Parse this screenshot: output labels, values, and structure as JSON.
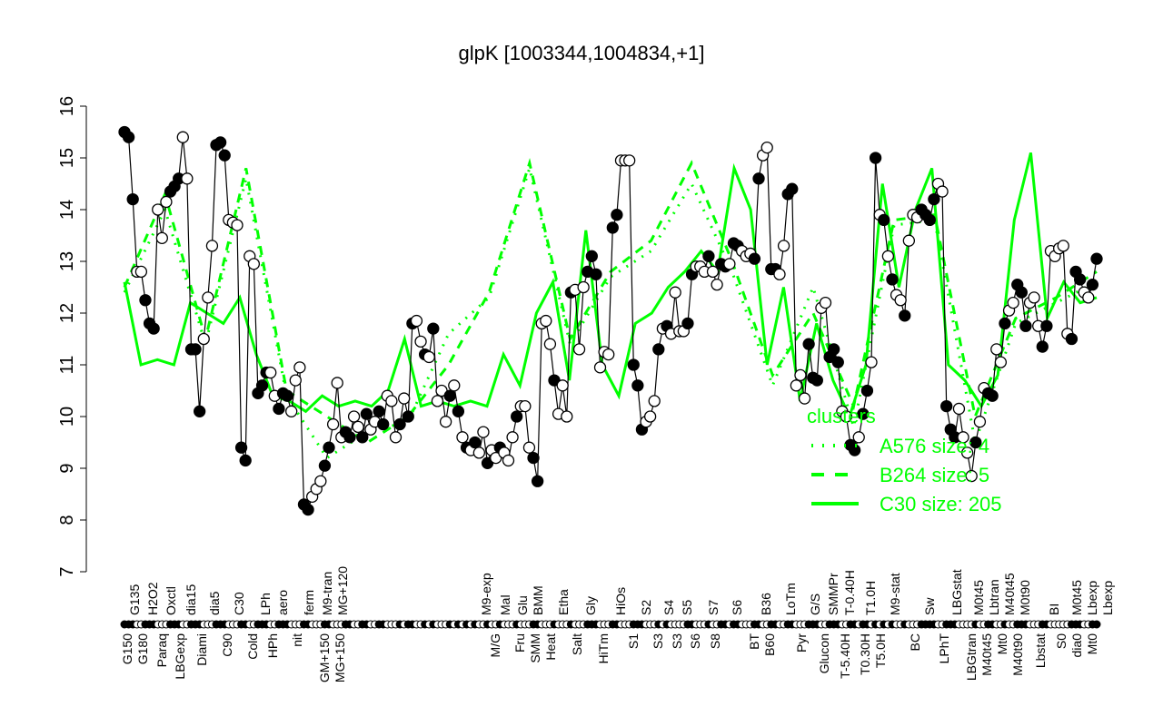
{
  "chart_data": {
    "type": "line",
    "title": "glpK [1003344,1004834,+1]",
    "xlabel": "",
    "ylabel": "",
    "ylim": [
      7,
      16
    ],
    "yticks": [
      "7",
      "8",
      "9",
      "10",
      "11",
      "12",
      "13",
      "14",
      "15",
      "16"
    ],
    "grid": false,
    "legend_placement": "bottom-right",
    "colors": {
      "points_line": "#000000",
      "clusters": "#00ff00"
    },
    "points": [
      [
        15.5,
        1
      ],
      [
        15.4,
        1
      ],
      [
        14.2,
        1
      ],
      [
        12.8,
        0
      ],
      [
        12.8,
        0
      ],
      [
        12.25,
        1
      ],
      [
        11.8,
        1
      ],
      [
        11.7,
        1
      ],
      [
        14.0,
        0
      ],
      [
        13.45,
        0
      ],
      [
        14.15,
        0
      ],
      [
        14.35,
        1
      ],
      [
        14.45,
        1
      ],
      [
        14.6,
        1
      ],
      [
        15.4,
        0
      ],
      [
        14.6,
        0
      ],
      [
        11.3,
        1
      ],
      [
        11.3,
        1
      ],
      [
        10.1,
        1
      ],
      [
        11.5,
        0
      ],
      [
        12.3,
        0
      ],
      [
        13.3,
        0
      ],
      [
        15.25,
        1
      ],
      [
        15.3,
        1
      ],
      [
        15.05,
        1
      ],
      [
        13.8,
        0
      ],
      [
        13.75,
        0
      ],
      [
        13.7,
        0
      ],
      [
        9.4,
        1
      ],
      [
        9.15,
        1
      ],
      [
        13.1,
        0
      ],
      [
        12.95,
        0
      ],
      [
        10.45,
        1
      ],
      [
        10.6,
        1
      ],
      [
        10.85,
        1
      ],
      [
        10.85,
        0
      ],
      [
        10.4,
        0
      ],
      [
        10.15,
        1
      ],
      [
        10.45,
        1
      ],
      [
        10.4,
        1
      ],
      [
        10.1,
        0
      ],
      [
        10.7,
        0
      ],
      [
        10.95,
        0
      ],
      [
        8.3,
        1
      ],
      [
        8.2,
        1
      ],
      [
        8.45,
        0
      ],
      [
        8.6,
        0
      ],
      [
        8.75,
        0
      ],
      [
        9.05,
        1
      ],
      [
        9.4,
        1
      ],
      [
        9.85,
        0
      ],
      [
        10.65,
        0
      ],
      [
        9.6,
        0
      ],
      [
        9.7,
        1
      ],
      [
        9.6,
        1
      ],
      [
        10.0,
        0
      ],
      [
        9.8,
        0
      ],
      [
        9.6,
        1
      ],
      [
        10.05,
        1
      ],
      [
        9.75,
        0
      ],
      [
        9.9,
        0
      ],
      [
        10.1,
        1
      ],
      [
        9.85,
        1
      ],
      [
        10.4,
        0
      ],
      [
        10.3,
        0
      ],
      [
        9.6,
        0
      ],
      [
        9.85,
        1
      ],
      [
        10.35,
        0
      ],
      [
        10.0,
        1
      ],
      [
        11.8,
        1
      ],
      [
        11.85,
        0
      ],
      [
        11.45,
        0
      ],
      [
        11.2,
        1
      ],
      [
        11.15,
        0
      ],
      [
        11.7,
        1
      ],
      [
        10.3,
        0
      ],
      [
        10.5,
        0
      ],
      [
        9.9,
        0
      ],
      [
        10.4,
        1
      ],
      [
        10.6,
        0
      ],
      [
        10.1,
        1
      ],
      [
        9.6,
        0
      ],
      [
        9.4,
        1
      ],
      [
        9.35,
        0
      ],
      [
        9.5,
        1
      ],
      [
        9.3,
        0
      ],
      [
        9.7,
        0
      ],
      [
        9.1,
        1
      ],
      [
        9.35,
        0
      ],
      [
        9.2,
        0
      ],
      [
        9.4,
        1
      ],
      [
        9.3,
        0
      ],
      [
        9.15,
        0
      ],
      [
        9.6,
        0
      ],
      [
        10.0,
        1
      ],
      [
        10.2,
        0
      ],
      [
        10.2,
        0
      ],
      [
        9.4,
        0
      ],
      [
        9.2,
        1
      ],
      [
        8.75,
        1
      ],
      [
        11.8,
        0
      ],
      [
        11.85,
        0
      ],
      [
        11.4,
        0
      ],
      [
        10.7,
        1
      ],
      [
        10.05,
        0
      ],
      [
        10.6,
        0
      ],
      [
        10.0,
        0
      ],
      [
        12.4,
        1
      ],
      [
        12.45,
        0
      ],
      [
        11.3,
        0
      ],
      [
        12.5,
        0
      ],
      [
        12.8,
        1
      ],
      [
        13.1,
        1
      ],
      [
        12.75,
        1
      ],
      [
        10.95,
        0
      ],
      [
        11.25,
        0
      ],
      [
        11.2,
        0
      ],
      [
        13.65,
        1
      ],
      [
        13.9,
        1
      ],
      [
        14.95,
        0
      ],
      [
        14.95,
        0
      ],
      [
        14.95,
        0
      ],
      [
        11.0,
        1
      ],
      [
        10.6,
        1
      ],
      [
        9.75,
        1
      ],
      [
        9.9,
        0
      ],
      [
        10.0,
        0
      ],
      [
        10.3,
        0
      ],
      [
        11.3,
        1
      ],
      [
        11.7,
        0
      ],
      [
        11.75,
        1
      ],
      [
        11.6,
        0
      ],
      [
        12.4,
        0
      ],
      [
        11.65,
        0
      ],
      [
        11.65,
        0
      ],
      [
        11.8,
        1
      ],
      [
        12.75,
        1
      ],
      [
        12.9,
        0
      ],
      [
        12.9,
        0
      ],
      [
        12.8,
        0
      ],
      [
        13.1,
        1
      ],
      [
        12.8,
        0
      ],
      [
        12.55,
        0
      ],
      [
        12.95,
        1
      ],
      [
        12.9,
        1
      ],
      [
        12.95,
        0
      ],
      [
        13.35,
        1
      ],
      [
        13.3,
        1
      ],
      [
        13.2,
        0
      ],
      [
        13.1,
        0
      ],
      [
        13.15,
        0
      ],
      [
        13.05,
        1
      ],
      [
        14.6,
        1
      ],
      [
        15.05,
        0
      ],
      [
        15.2,
        0
      ],
      [
        12.85,
        1
      ],
      [
        12.85,
        1
      ],
      [
        12.75,
        0
      ],
      [
        13.3,
        0
      ],
      [
        14.3,
        1
      ],
      [
        14.4,
        1
      ],
      [
        10.6,
        0
      ],
      [
        10.8,
        0
      ],
      [
        10.35,
        0
      ],
      [
        11.4,
        1
      ],
      [
        10.75,
        1
      ],
      [
        10.7,
        1
      ],
      [
        12.1,
        0
      ],
      [
        12.2,
        0
      ],
      [
        11.15,
        1
      ],
      [
        11.3,
        1
      ],
      [
        11.05,
        1
      ],
      [
        10.1,
        0
      ],
      [
        10.0,
        0
      ],
      [
        9.45,
        1
      ],
      [
        9.35,
        1
      ],
      [
        9.6,
        0
      ],
      [
        10.05,
        1
      ],
      [
        10.5,
        1
      ],
      [
        11.05,
        0
      ],
      [
        15.0,
        1
      ],
      [
        13.9,
        0
      ],
      [
        13.8,
        1
      ],
      [
        13.1,
        0
      ],
      [
        12.65,
        1
      ],
      [
        12.35,
        0
      ],
      [
        12.25,
        0
      ],
      [
        11.95,
        1
      ],
      [
        13.4,
        0
      ],
      [
        13.9,
        0
      ],
      [
        13.85,
        0
      ],
      [
        14.0,
        1
      ],
      [
        13.9,
        1
      ],
      [
        13.8,
        1
      ],
      [
        14.2,
        1
      ],
      [
        14.5,
        0
      ],
      [
        14.35,
        0
      ],
      [
        10.2,
        1
      ],
      [
        9.75,
        1
      ],
      [
        9.6,
        1
      ],
      [
        10.15,
        0
      ],
      [
        9.6,
        0
      ],
      [
        9.3,
        0
      ],
      [
        8.85,
        0
      ],
      [
        9.5,
        1
      ],
      [
        9.9,
        0
      ],
      [
        10.55,
        0
      ],
      [
        10.45,
        1
      ],
      [
        10.4,
        1
      ],
      [
        11.3,
        0
      ],
      [
        11.05,
        0
      ],
      [
        11.8,
        1
      ],
      [
        12.05,
        0
      ],
      [
        12.2,
        0
      ],
      [
        12.55,
        1
      ],
      [
        12.4,
        1
      ],
      [
        11.75,
        1
      ],
      [
        12.2,
        0
      ],
      [
        12.3,
        0
      ],
      [
        11.75,
        0
      ],
      [
        11.35,
        1
      ],
      [
        11.75,
        1
      ],
      [
        13.2,
        0
      ],
      [
        13.1,
        0
      ],
      [
        13.25,
        0
      ],
      [
        13.3,
        0
      ],
      [
        11.6,
        0
      ],
      [
        11.5,
        1
      ],
      [
        12.8,
        1
      ],
      [
        12.65,
        1
      ],
      [
        12.4,
        0
      ],
      [
        12.3,
        0
      ],
      [
        12.55,
        1
      ],
      [
        13.05,
        1
      ]
    ],
    "series": [
      {
        "name": "C30 size: 205",
        "style": "solid",
        "values": [
          12.6,
          11.0,
          11.1,
          11.0,
          12.2,
          12.0,
          11.8,
          12.3,
          11.2,
          10.4,
          10.3,
          10.1,
          10.4,
          10.2,
          10.3,
          10.2,
          10.5,
          11.5,
          10.2,
          10.3,
          10.2,
          10.3,
          10.2,
          11.2,
          10.6,
          12.0,
          12.6,
          10.7,
          13.6,
          11.0,
          10.4,
          11.8,
          12.0,
          12.5,
          12.8,
          13.2,
          12.8,
          14.8,
          14.0,
          11.0,
          12.5,
          10.3,
          11.8,
          10.7,
          10.0,
          11.0,
          14.5,
          12.5,
          14.0,
          14.8,
          11.0,
          10.7,
          10.2,
          10.8,
          13.8,
          15.1,
          11.9,
          12.6,
          12.2,
          12.3
        ]
      },
      {
        "name": "B264 size: 5",
        "style": "dashed",
        "values": [
          12.5,
          14.3,
          11.5,
          14.8,
          10.5,
          10.0,
          9.5,
          10.0,
          11.0,
          12.4,
          14.9,
          11.5,
          12.8,
          13.4,
          14.9,
          13.0,
          10.8,
          12.0,
          10.2,
          13.8,
          13.9,
          10.0,
          11.9,
          12.3,
          12.8
        ]
      },
      {
        "name": "A576 size: 4",
        "style": "dotted",
        "values": [
          12.4,
          14.0,
          11.4,
          14.6,
          10.4,
          9.2,
          9.7,
          9.9,
          11.6,
          12.3,
          14.8,
          11.4,
          12.7,
          13.2,
          14.5,
          12.8,
          10.6,
          12.5,
          9.8,
          13.7,
          13.8,
          9.5,
          11.8,
          12.2,
          12.6
        ]
      }
    ],
    "legend": {
      "title": "clusters",
      "entries": [
        "A576 size: 4",
        "B264 size: 5",
        "C30 size: 205"
      ]
    },
    "xtick_labels": [
      "G150",
      "G135",
      "G180",
      "H2O2",
      "Paraq",
      "Oxctl",
      "LBGexp",
      "dia15",
      "Diami",
      "dia5",
      "C90",
      "C30",
      "Cold",
      "LPh",
      "HPh",
      "aero",
      "nit",
      "ferm",
      "GM+150",
      "M9-tran",
      "MG+150",
      "MG+120",
      "M9-exp",
      "M/G",
      "Mal",
      "Fru",
      "Glu",
      "SMM",
      "BMM",
      "Heat",
      "Etha",
      "Salt",
      "Gly",
      "HiTm",
      "HiOs",
      "S1",
      "S2",
      "S3",
      "S4",
      "S3",
      "S5",
      "S6",
      "S7",
      "S8",
      "S6",
      "BT",
      "B36",
      "B60",
      "LoTm",
      "Pyr",
      "G/S",
      "Glucon",
      "SMMPr",
      "T-5.40H",
      "T-0.40H",
      "T0.30H",
      "T1.0H",
      "T5.0H",
      "M9-stat",
      "BC",
      "Sw",
      "LPhT",
      "LBGstat",
      "LBGtran",
      "M0t45",
      "M40t45",
      "Lbtran",
      "Mt0",
      "M40t45",
      "M40t90",
      "M0t90",
      "Lbstat",
      "BI",
      "S0",
      "dia0",
      "M0t45",
      "Mt0",
      "Lbexp",
      "Lbexp"
    ]
  }
}
